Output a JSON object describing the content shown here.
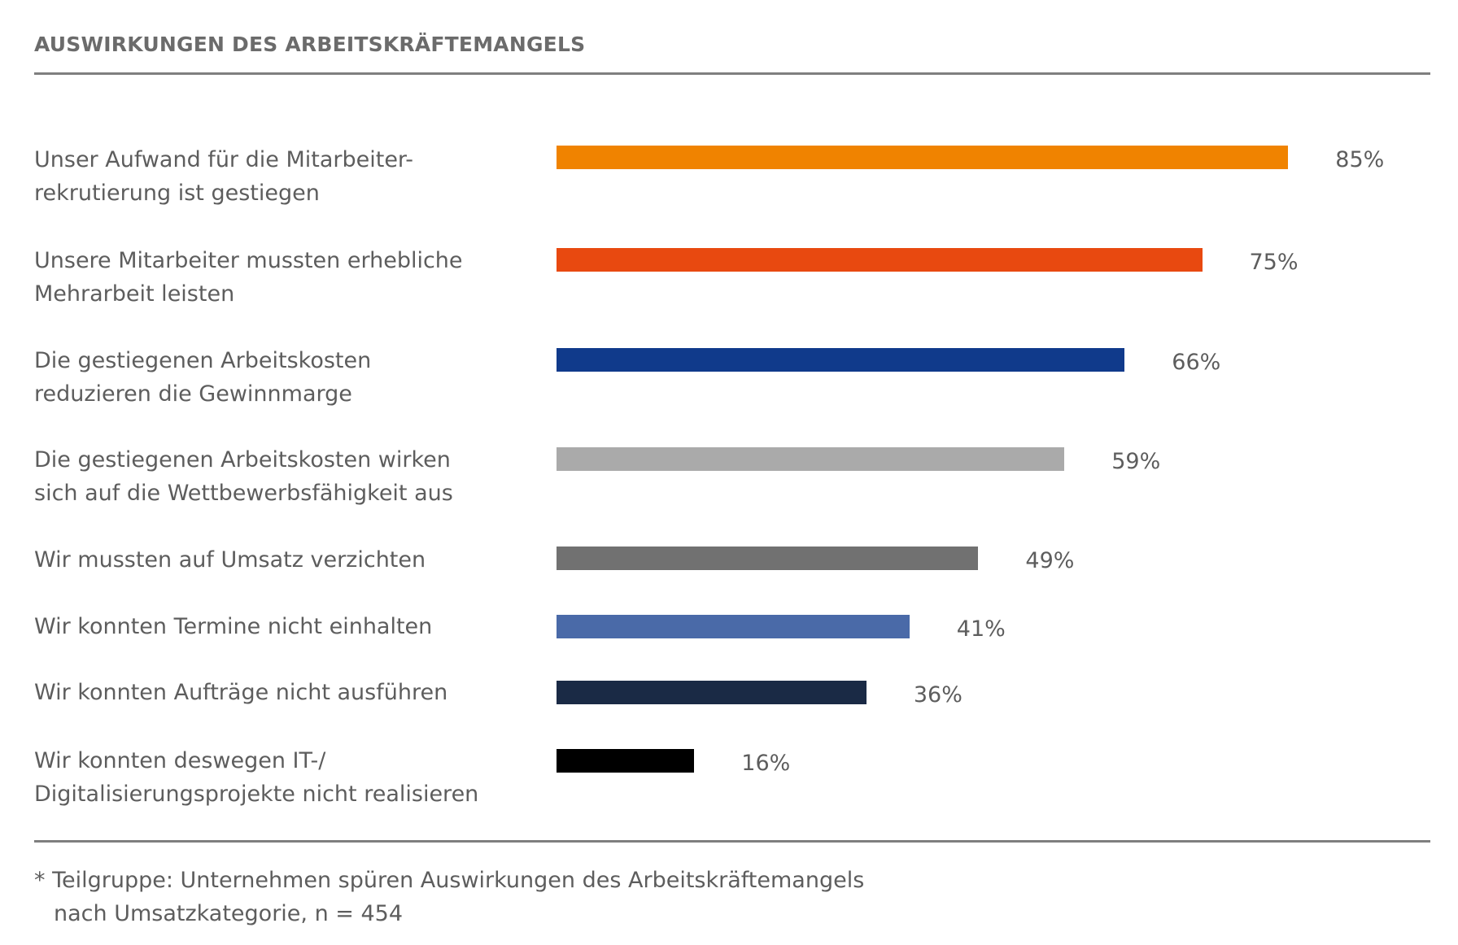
{
  "title": "AUSWIRKUNGEN DES ARBEITSKRÄFTEMANGELS",
  "chart_data": {
    "type": "bar",
    "orientation": "horizontal",
    "categories": [
      "Unser Aufwand für die Mitarbeiter-\nrekrutierung ist gestiegen",
      "Unsere Mitarbeiter mussten erhebliche\nMehrarbeit leisten",
      "Die gestiegenen Arbeitskosten\nreduzieren die Gewinnmarge",
      "Die gestiegenen Arbeitskosten wirken\nsich auf die Wettbewerbsfähigkeit aus",
      "Wir mussten auf Umsatz verzichten",
      "Wir konnten Termine nicht einhalten",
      "Wir konnten Aufträge nicht ausführen",
      "Wir konnten deswegen IT-/\nDigitalisierungsprojekte nicht realisieren"
    ],
    "values": [
      85,
      75,
      66,
      59,
      49,
      41,
      36,
      16
    ],
    "value_labels": [
      "85%",
      "75%",
      "66%",
      "59%",
      "49%",
      "41%",
      "36%",
      "16%"
    ],
    "colors": [
      "#f08300",
      "#e84910",
      "#103a8b",
      "#aaaaaa",
      "#717171",
      "#4a6aa8",
      "#1a2a45",
      "#000000"
    ],
    "xlim": [
      0,
      100
    ],
    "grid": false,
    "legend": "none"
  },
  "footnote": {
    "line1": "* Teilgruppe: Unternehmen spüren Auswirkungen des Arbeitskräftemangels",
    "line2": "nach Umsatzkategorie, n = 454"
  }
}
